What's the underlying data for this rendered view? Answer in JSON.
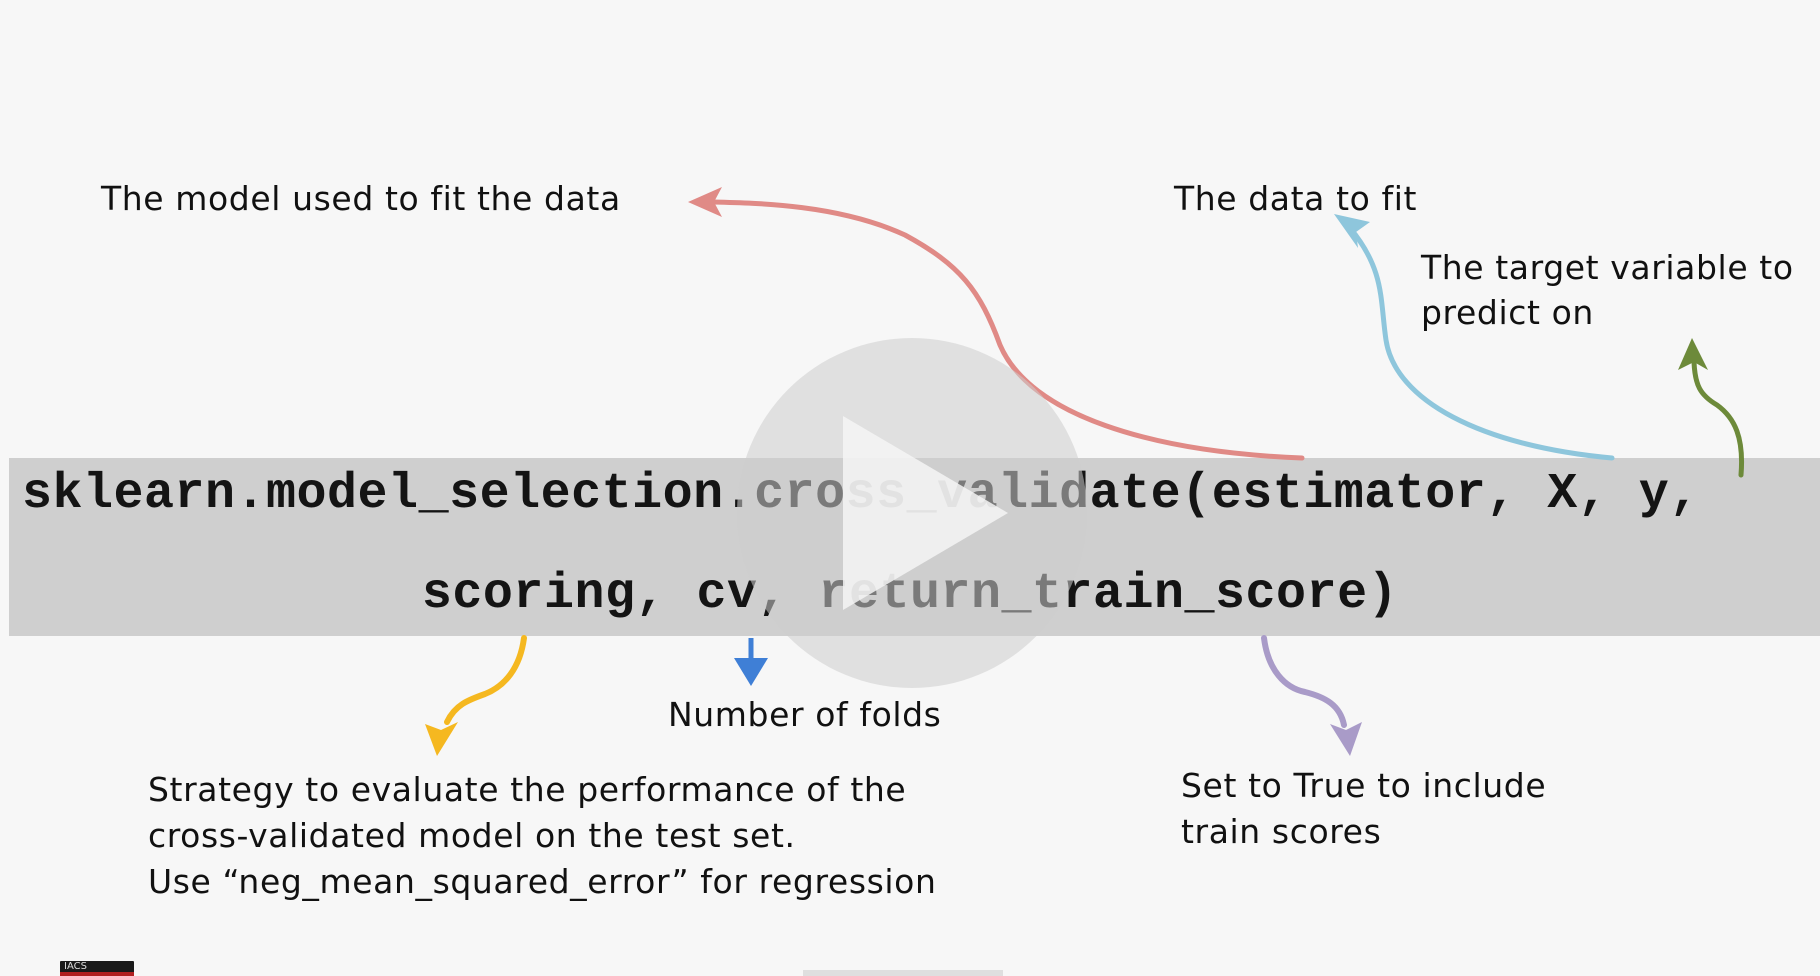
{
  "code": {
    "line1": "sklearn.model_selection.cross_validate(estimator, X, y,",
    "line2": "scoring, cv, return_train_score)"
  },
  "annotations": {
    "estimator": "The model used to fit the data",
    "x": "The data to fit",
    "y_line1": "The target variable to",
    "y_line2": "predict on",
    "cv": "Number of folds",
    "scoring_line1": "Strategy to evaluate the performance of the",
    "scoring_line2": "cross-validated model on the test set.",
    "scoring_line3": "Use “neg_mean_squared_error” for regression",
    "return_train_score_line1": "Set to True to include",
    "return_train_score_line2": "train scores"
  },
  "logo": "IACS",
  "colors": {
    "background": "#f7f7f7",
    "code_band": "#cfcfcf",
    "estimator_arrow": "#e08a86",
    "x_arrow": "#8ec6dc",
    "y_arrow": "#6d8a3a",
    "scoring_arrow": "#f5b820",
    "cv_arrow": "#3f7fd6",
    "return_train_score_arrow": "#a99bc8"
  },
  "icons": {
    "play": "play-icon"
  }
}
